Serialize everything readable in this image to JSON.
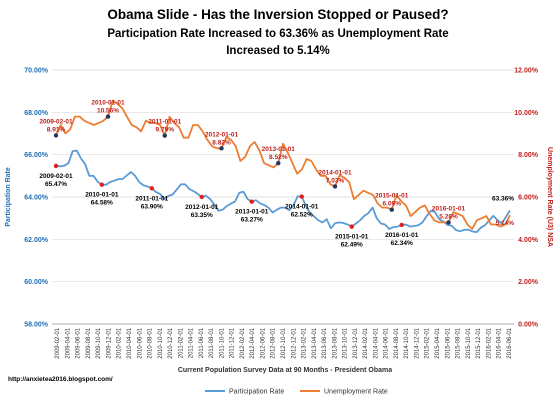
{
  "chart_data": {
    "type": "line",
    "title_lines": [
      "Obama Slide - Has the Inversion Stopped or Paused?",
      "Participation Rate Increased to 63.36% as Unemployment Rate",
      "Increased to 5.14%"
    ],
    "xlabel": "Current Population Survey Data at 90 Months - President Obama",
    "ylabel_left": "Participation Rate",
    "ylabel_right": "Unemployment Rate (U3) NSA",
    "ylim_left": [
      58,
      70
    ],
    "ylim_right": [
      0,
      12
    ],
    "left_ticks": [
      "58.00%",
      "60.00%",
      "62.00%",
      "64.00%",
      "66.00%",
      "68.00%",
      "70.00%"
    ],
    "right_ticks": [
      "0.00%",
      "2.00%",
      "4.00%",
      "6.00%",
      "8.00%",
      "10.00%",
      "12.00%"
    ],
    "x_tick_labels": [
      "2009-02-01",
      "2009-04-01",
      "2009-06-01",
      "2009-08-01",
      "2009-10-01",
      "2009-12-01",
      "2010-02-01",
      "2010-04-01",
      "2010-06-01",
      "2010-08-01",
      "2010-10-01",
      "2010-12-01",
      "2011-02-01",
      "2011-04-01",
      "2011-06-01",
      "2011-08-01",
      "2011-10-01",
      "2011-12-01",
      "2012-02-01",
      "2012-04-01",
      "2012-06-01",
      "2012-08-01",
      "2012-10-01",
      "2012-12-01",
      "2013-02-01",
      "2013-04-01",
      "2013-06-01",
      "2013-08-01",
      "2013-10-01",
      "2013-12-01",
      "2014-02-01",
      "2014-04-01",
      "2014-06-01",
      "2014-08-01",
      "2014-10-01",
      "2014-12-01",
      "2015-02-01",
      "2015-04-01",
      "2015-06-01",
      "2015-08-01",
      "2015-10-01",
      "2015-12-01",
      "2016-02-01",
      "2016-04-01",
      "2016-06-01"
    ],
    "grid": true,
    "legend_position": "bottom",
    "series": [
      {
        "name": "Participation Rate",
        "axis": "left",
        "color": "#5b9bd5",
        "values": [
          65.47,
          65.45,
          65.48,
          65.6,
          66.17,
          66.19,
          65.82,
          65.55,
          65.0,
          65.0,
          64.72,
          64.58,
          64.58,
          64.71,
          64.77,
          64.85,
          64.85,
          65.02,
          65.18,
          65.0,
          64.7,
          64.55,
          64.5,
          64.41,
          64.23,
          64.14,
          63.9,
          64.05,
          64.12,
          64.36,
          64.6,
          64.6,
          64.38,
          64.28,
          64.15,
          64.0,
          64.06,
          63.9,
          63.65,
          63.35,
          63.4,
          63.57,
          63.69,
          63.79,
          64.2,
          64.25,
          63.9,
          63.78,
          63.85,
          63.7,
          63.62,
          63.5,
          63.27,
          63.4,
          63.5,
          63.5,
          63.38,
          63.6,
          64.03,
          64.02,
          63.59,
          63.23,
          63.08,
          62.9,
          62.8,
          62.95,
          62.52,
          62.76,
          62.8,
          62.77,
          62.7,
          62.6,
          62.75,
          62.9,
          63.1,
          63.24,
          63.5,
          63.0,
          62.75,
          62.7,
          62.49,
          62.58,
          62.6,
          62.68,
          62.7,
          62.6,
          62.63,
          62.67,
          62.8,
          63.1,
          63.35,
          63.29,
          62.95,
          62.84,
          62.68,
          62.64,
          62.44,
          62.38,
          62.45,
          62.46,
          62.37,
          62.34,
          62.55,
          62.67,
          62.89,
          63.11,
          62.9,
          62.75,
          63.05,
          63.36
        ]
      },
      {
        "name": "Unemployment Rate",
        "axis": "right",
        "color": "#ed7d31",
        "values": [
          8.91,
          9.4,
          9.0,
          9.2,
          9.8,
          9.8,
          9.6,
          9.5,
          9.4,
          9.5,
          9.6,
          9.8,
          10.56,
          10.4,
          10.2,
          9.8,
          9.4,
          9.3,
          9.1,
          9.6,
          9.5,
          9.5,
          9.4,
          8.9,
          9.79,
          9.5,
          9.3,
          8.8,
          8.8,
          9.4,
          9.4,
          9.1,
          8.7,
          8.4,
          8.3,
          8.3,
          8.82,
          8.7,
          8.4,
          7.7,
          7.9,
          8.4,
          8.6,
          8.2,
          7.6,
          7.5,
          7.4,
          7.6,
          8.52,
          8.1,
          7.6,
          7.1,
          7.3,
          7.8,
          7.7,
          7.3,
          7.0,
          7.0,
          6.6,
          6.5,
          7.03,
          6.9,
          6.7,
          5.9,
          6.1,
          6.3,
          6.2,
          6.1,
          5.7,
          5.5,
          5.5,
          5.4,
          6.09,
          5.8,
          5.6,
          5.1,
          5.3,
          5.5,
          5.6,
          5.2,
          4.9,
          4.8,
          4.8,
          4.8,
          5.28,
          5.2,
          5.1,
          4.7,
          4.5,
          4.9,
          5.0,
          5.1,
          4.7,
          4.7,
          4.6,
          4.7,
          5.14
        ]
      }
    ],
    "annotations": [
      {
        "date": "2009-02-01",
        "value": "8.91%",
        "series": "Unemployment Rate"
      },
      {
        "date": "2010-01-01",
        "value": "10.56%",
        "series": "Unemployment Rate"
      },
      {
        "date": "2011-01-01",
        "value": "9.79%",
        "series": "Unemployment Rate"
      },
      {
        "date": "2012-01-01",
        "value": "8.82%",
        "series": "Unemployment Rate"
      },
      {
        "date": "2013-01-01",
        "value": "8.52%",
        "series": "Unemployment Rate"
      },
      {
        "date": "2014-01-01",
        "value": "7.03%",
        "series": "Unemployment Rate"
      },
      {
        "date": "2015-01-01",
        "value": "6.09%",
        "series": "Unemployment Rate"
      },
      {
        "date": "2016-01-01",
        "value": "5.28%",
        "series": "Unemployment Rate"
      },
      {
        "date": "2009-02-01",
        "value": "65.47%",
        "series": "Participation Rate"
      },
      {
        "date": "2010-01-01",
        "value": "64.58%",
        "series": "Participation Rate"
      },
      {
        "date": "2011-01-01",
        "value": "63.90%",
        "series": "Participation Rate"
      },
      {
        "date": "2012-01-01",
        "value": "63.35%",
        "series": "Participation Rate"
      },
      {
        "date": "2013-01-01",
        "value": "63.27%",
        "series": "Participation Rate"
      },
      {
        "date": "2014-01-01",
        "value": "62.52%",
        "series": "Participation Rate"
      },
      {
        "date": "2015-01-01",
        "value": "62.49%",
        "series": "Participation Rate"
      },
      {
        "date": "2016-01-01",
        "value": "62.34%",
        "series": "Participation Rate"
      }
    ],
    "end_labels": [
      {
        "value": "63.36%",
        "series": "Participation Rate"
      },
      {
        "value": "5.14%",
        "series": "Unemployment Rate"
      }
    ]
  },
  "footer_url": "http://anxietea2016.blogspot.com/",
  "colors": {
    "left_axis": "#1f6fb5",
    "right_axis": "#c0201b",
    "grid": "#d9d9d9",
    "marker_blue": "#1f3864",
    "marker_red": "#e0201b"
  }
}
